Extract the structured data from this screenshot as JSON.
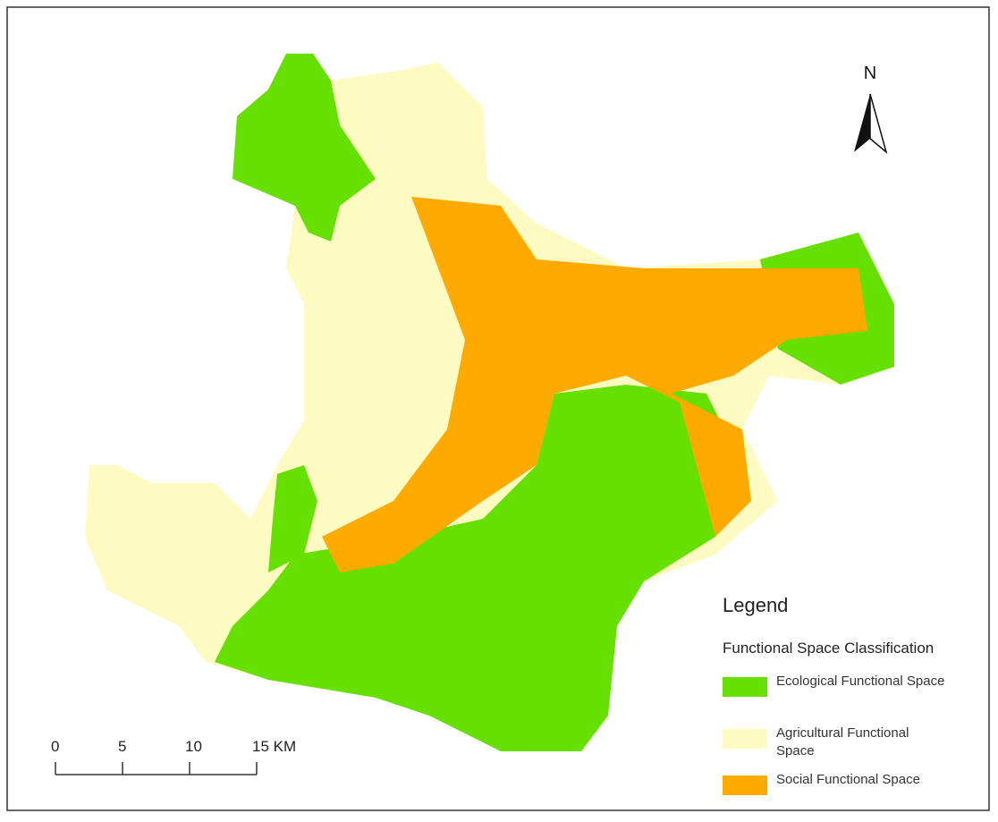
{
  "north_arrow": {
    "label": "N"
  },
  "legend": {
    "title": "Legend",
    "subtitle": "Functional Space Classification",
    "items": [
      {
        "label": "Ecological Functional Space",
        "color": "#66e000"
      },
      {
        "label": "Agricultural Functional Space",
        "color": "#fdfbc2"
      },
      {
        "label": "Social Functional Space",
        "color": "#ffaa00"
      }
    ]
  },
  "scale_bar": {
    "labels": [
      "0",
      "5",
      "10",
      "15 KM"
    ]
  }
}
